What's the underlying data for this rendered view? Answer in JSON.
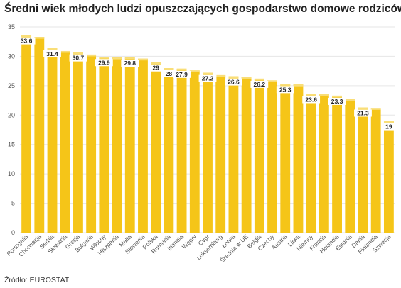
{
  "header": {
    "title": "Średni wiek młodych ludzi opuszczających gospodarstwo domowe rodziców"
  },
  "footer": {
    "source": "Źródło: EUROSTAT"
  },
  "colors": {
    "bar": "#F5C518",
    "bar_top": "#F9DE78",
    "grid": "#e6e6e6",
    "label_bg": "#ffffff"
  },
  "chart_data": {
    "type": "bar",
    "title": "Średni wiek młodych ludzi opuszczających gospodarstwo domowe rodziców",
    "xlabel": "",
    "ylabel": "",
    "ylim": [
      0,
      35
    ],
    "yticks": [
      0,
      5,
      10,
      15,
      20,
      25,
      30,
      35
    ],
    "grid": true,
    "categories": [
      "Portugalia",
      "Chorwacja",
      "Serbia",
      "Słowacja",
      "Grecja",
      "Bułgaria",
      "Włochy",
      "Hiszpania",
      "Malta",
      "Słowenia",
      "Polska",
      "Rumunia",
      "Irlandia",
      "Węgry",
      "Cypr",
      "Luksemburg",
      "Łotwa",
      "Średnia w UE",
      "Belgia",
      "Czechy",
      "Austria",
      "Litwa",
      "Niemcy",
      "Francja",
      "Holandia",
      "Estonia",
      "Dania",
      "Finlandia",
      "Szwecja"
    ],
    "values": [
      33.6,
      33.3,
      31.4,
      30.9,
      30.7,
      30.3,
      29.9,
      29.8,
      29.8,
      29.6,
      29,
      28,
      27.9,
      27.6,
      27.2,
      26.8,
      26.6,
      26.5,
      26.2,
      25.9,
      25.3,
      25.2,
      23.6,
      23.6,
      23.3,
      22.7,
      21.3,
      21.2,
      19
    ],
    "data_labels": [
      "33.6",
      "",
      "31.4",
      "",
      "30.7",
      "",
      "29.9",
      "",
      "29.8",
      "",
      "29",
      "28",
      "27.9",
      "",
      "27.2",
      "",
      "26.6",
      "",
      "26.2",
      "",
      "25.3",
      "",
      "23.6",
      "",
      "23.3",
      "",
      "21.3",
      "",
      "19"
    ]
  }
}
